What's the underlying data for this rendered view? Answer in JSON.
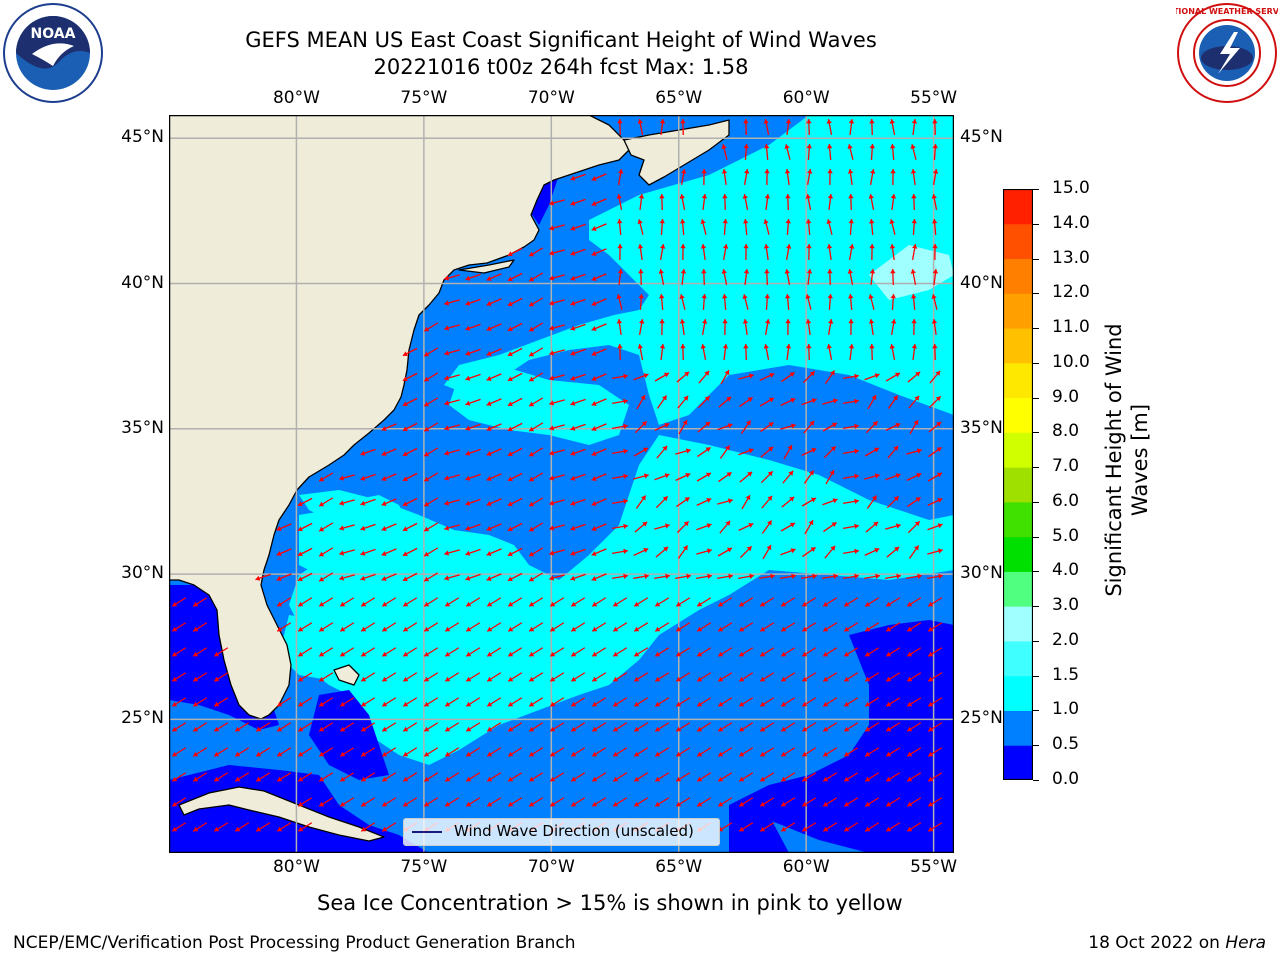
{
  "title": {
    "line1": "GEFS MEAN US East Coast Significant Height of Wind Waves",
    "line2": "20221016 t00z 264h fcst   Max: 1.58"
  },
  "map": {
    "lon_ticks": [
      "80°W",
      "75°W",
      "70°W",
      "65°W",
      "60°W",
      "55°W"
    ],
    "lat_ticks": [
      "45°N",
      "40°N",
      "35°N",
      "30°N",
      "25°N"
    ],
    "lon_values": [
      -80,
      -75,
      -70,
      -65,
      -60,
      -55
    ],
    "lat_values": [
      45,
      40,
      35,
      30,
      25
    ],
    "extent": {
      "lon_min": -85,
      "lon_max": -54.2,
      "lat_min": 20.4,
      "lat_max": 45.8
    },
    "legend_label": "Wind Wave Direction (unscaled)",
    "colors": {
      "land": "#efedd9",
      "arrow": "#ff0000",
      "grid": "#b0b0b0"
    }
  },
  "colorbar": {
    "label": "Significant Height of Wind Waves [m]",
    "tick_labels": [
      "15.0",
      "14.0",
      "13.0",
      "12.0",
      "11.0",
      "10.0",
      "9.0",
      "8.0",
      "7.0",
      "6.0",
      "5.0",
      "4.0",
      "3.0",
      "2.0",
      "1.5",
      "1.0",
      "0.5",
      "0.0"
    ],
    "levels": [
      0.0,
      0.5,
      1.0,
      1.5,
      2.0,
      3.0,
      4.0,
      5.0,
      6.0,
      7.0,
      8.0,
      9.0,
      10.0,
      11.0,
      12.0,
      13.0,
      14.0,
      15.0
    ],
    "colors": [
      "#0000ff",
      "#0080ff",
      "#00ffff",
      "#40ffff",
      "#a0ffff",
      "#50ff80",
      "#00e000",
      "#40e000",
      "#a0e000",
      "#d0ff00",
      "#ffff00",
      "#ffe800",
      "#ffc000",
      "#ffa000",
      "#ff8000",
      "#ff5000",
      "#ff2000",
      "#ff0000"
    ]
  },
  "subtitle": "Sea Ice Concentration > 15% is shown in pink to yellow",
  "footer": {
    "left": "NCEP/EMC/Verification Post Processing Product Generation Branch",
    "right_date": "18 Oct 2022 on ",
    "right_machine": "Hera"
  },
  "logos": {
    "noaa_text": "NOAA",
    "nws_text": "NATIONAL WEATHER SERVICE"
  }
}
